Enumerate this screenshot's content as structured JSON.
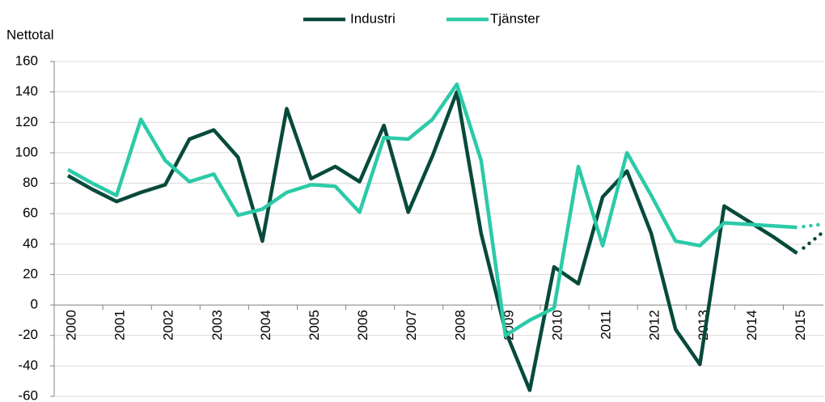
{
  "chart_data": {
    "type": "line",
    "y_axis_title": "Nettotal",
    "categories": [
      "2000",
      null,
      "2001",
      null,
      "2002",
      null,
      "2003",
      null,
      "2004",
      null,
      "2005",
      null,
      "2006",
      null,
      "2007",
      null,
      "2008",
      null,
      "2009",
      null,
      "2010",
      null,
      "2011",
      null,
      "2012",
      null,
      "2013",
      null,
      "2014",
      null,
      "2015",
      null
    ],
    "series": [
      {
        "name": "Industri",
        "color": "#074a3b",
        "values": [
          85,
          76,
          68,
          74,
          79,
          109,
          115,
          97,
          42,
          129,
          83,
          91,
          81,
          118,
          61,
          98,
          140,
          47,
          -17,
          -56,
          25,
          14,
          71,
          88,
          47,
          -16,
          -39,
          65,
          55,
          45,
          34,
          47
        ]
      },
      {
        "name": "Tjänster",
        "color": "#2ccaa8",
        "values": [
          89,
          80,
          72,
          122,
          95,
          81,
          86,
          59,
          63,
          74,
          79,
          78,
          61,
          110,
          109,
          122,
          145,
          95,
          -20,
          -10,
          -2,
          91,
          39,
          100,
          72,
          42,
          39,
          54,
          53,
          52,
          51,
          53
        ]
      }
    ],
    "forecast_start_index": 30,
    "ylim": [
      -60,
      160
    ],
    "yticks": [
      -60,
      -40,
      -20,
      0,
      20,
      40,
      60,
      80,
      100,
      120,
      140,
      160
    ],
    "grid": true,
    "legend": "top"
  }
}
